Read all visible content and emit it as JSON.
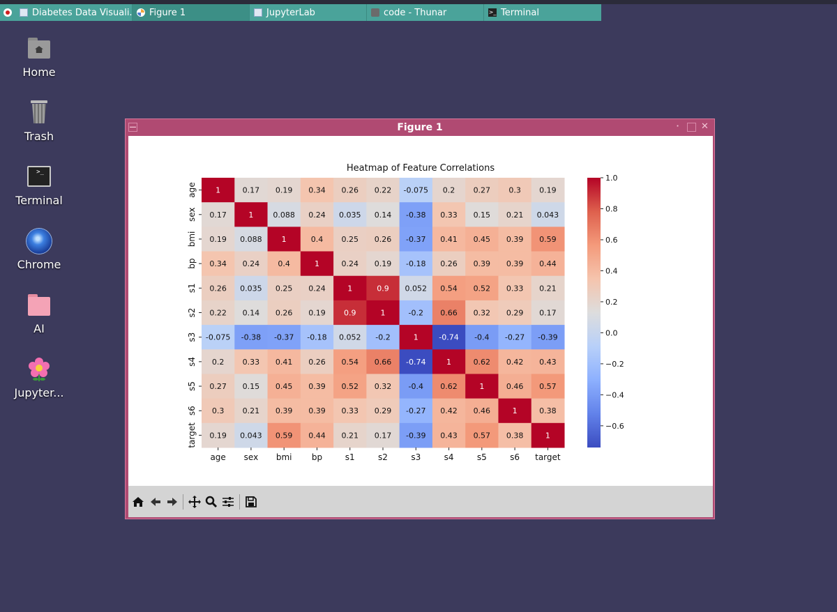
{
  "taskbar": {
    "tasks": [
      {
        "label": "Diabetes Data Visuali...",
        "icon": "window-icon",
        "active": false
      },
      {
        "label": "Figure 1",
        "icon": "matplotlib-icon",
        "active": true
      },
      {
        "label": "JupyterLab",
        "icon": "window-icon",
        "active": false
      },
      {
        "label": "code - Thunar",
        "icon": "folder-icon",
        "active": false
      },
      {
        "label": "Terminal",
        "icon": "terminal-icon",
        "active": false
      }
    ]
  },
  "desktop": {
    "icons": [
      {
        "label": "Home",
        "icon": "home-folder-icon"
      },
      {
        "label": "Trash",
        "icon": "trash-icon"
      },
      {
        "label": "Terminal",
        "icon": "terminal-icon"
      },
      {
        "label": "Chrome",
        "icon": "chrome-icon"
      },
      {
        "label": "AI",
        "icon": "folder-icon"
      },
      {
        "label": "Jupyter...",
        "icon": "flower-icon"
      }
    ]
  },
  "window": {
    "title": "Figure 1",
    "toolbar": [
      "home-icon",
      "back-arrow-icon",
      "forward-arrow-icon",
      "pan-icon",
      "zoom-icon",
      "configure-subplots-icon",
      "save-icon"
    ]
  },
  "chart_data": {
    "type": "heatmap",
    "title": "Heatmap of Feature Correlations",
    "xlabel": "",
    "ylabel": "",
    "labels": [
      "age",
      "sex",
      "bmi",
      "bp",
      "s1",
      "s2",
      "s3",
      "s4",
      "s5",
      "s6",
      "target"
    ],
    "matrix": [
      [
        1,
        0.17,
        0.19,
        0.34,
        0.26,
        0.22,
        -0.075,
        0.2,
        0.27,
        0.3,
        0.19
      ],
      [
        0.17,
        1,
        0.088,
        0.24,
        0.035,
        0.14,
        -0.38,
        0.33,
        0.15,
        0.21,
        0.043
      ],
      [
        0.19,
        0.088,
        1,
        0.4,
        0.25,
        0.26,
        -0.37,
        0.41,
        0.45,
        0.39,
        0.59
      ],
      [
        0.34,
        0.24,
        0.4,
        1,
        0.24,
        0.19,
        -0.18,
        0.26,
        0.39,
        0.39,
        0.44
      ],
      [
        0.26,
        0.035,
        0.25,
        0.24,
        1,
        0.9,
        0.052,
        0.54,
        0.52,
        0.33,
        0.21
      ],
      [
        0.22,
        0.14,
        0.26,
        0.19,
        0.9,
        1,
        -0.2,
        0.66,
        0.32,
        0.29,
        0.17
      ],
      [
        -0.075,
        -0.38,
        -0.37,
        -0.18,
        0.052,
        -0.2,
        1,
        -0.74,
        -0.4,
        -0.27,
        -0.39
      ],
      [
        0.2,
        0.33,
        0.41,
        0.26,
        0.54,
        0.66,
        -0.74,
        1,
        0.62,
        0.42,
        0.43
      ],
      [
        0.27,
        0.15,
        0.45,
        0.39,
        0.52,
        0.32,
        -0.4,
        0.62,
        1,
        0.46,
        0.57
      ],
      [
        0.3,
        0.21,
        0.39,
        0.39,
        0.33,
        0.29,
        -0.27,
        0.42,
        0.46,
        1,
        0.38
      ],
      [
        0.19,
        0.043,
        0.59,
        0.44,
        0.21,
        0.17,
        -0.39,
        0.43,
        0.57,
        0.38,
        1
      ]
    ],
    "colormap": "coolwarm",
    "vmin": -0.74,
    "vmax": 1.0,
    "colorbar_ticks": [
      1.0,
      0.8,
      0.6,
      0.4,
      0.2,
      0.0,
      -0.2,
      -0.4,
      -0.6
    ],
    "colorbar_tick_labels": [
      "1.0",
      "0.8",
      "0.6",
      "0.4",
      "0.2",
      "0.0",
      "−0.2",
      "−0.4",
      "−0.6"
    ],
    "annotated": true,
    "grid": false
  }
}
